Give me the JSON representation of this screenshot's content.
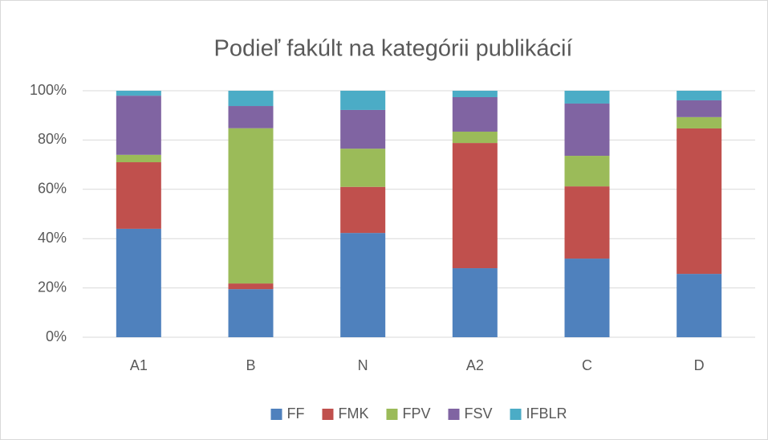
{
  "chart_data": {
    "type": "bar",
    "stacked": true,
    "title": "Podieľ fakúlt na kategórii publikácií",
    "categories": [
      "A1",
      "B",
      "N",
      "A2",
      "C",
      "D"
    ],
    "series": [
      {
        "name": "FF",
        "color": "#4f81bd",
        "values": [
          44,
          19.5,
          42.3,
          28,
          31.9,
          25.7
        ]
      },
      {
        "name": "FMK",
        "color": "#c0504d",
        "values": [
          27,
          2.3,
          18.7,
          50.8,
          29.3,
          59
        ]
      },
      {
        "name": "FPV",
        "color": "#9bbb59",
        "values": [
          3,
          63,
          15.5,
          4.6,
          12.4,
          4.6
        ]
      },
      {
        "name": "FSV",
        "color": "#8064a2",
        "values": [
          24,
          9,
          15.7,
          14,
          21.2,
          6.8
        ]
      },
      {
        "name": "IFBLR",
        "color": "#4bacc6",
        "values": [
          2,
          6.2,
          7.8,
          2.6,
          5.2,
          3.9
        ]
      }
    ],
    "ylim": [
      0,
      100
    ],
    "yticks": [
      {
        "value": 0,
        "label": "0%"
      },
      {
        "value": 20,
        "label": "20%"
      },
      {
        "value": 40,
        "label": "40%"
      },
      {
        "value": 60,
        "label": "60%"
      },
      {
        "value": 80,
        "label": "80%"
      },
      {
        "value": 100,
        "label": "100%"
      }
    ],
    "grid": true,
    "legend": "bottom"
  }
}
